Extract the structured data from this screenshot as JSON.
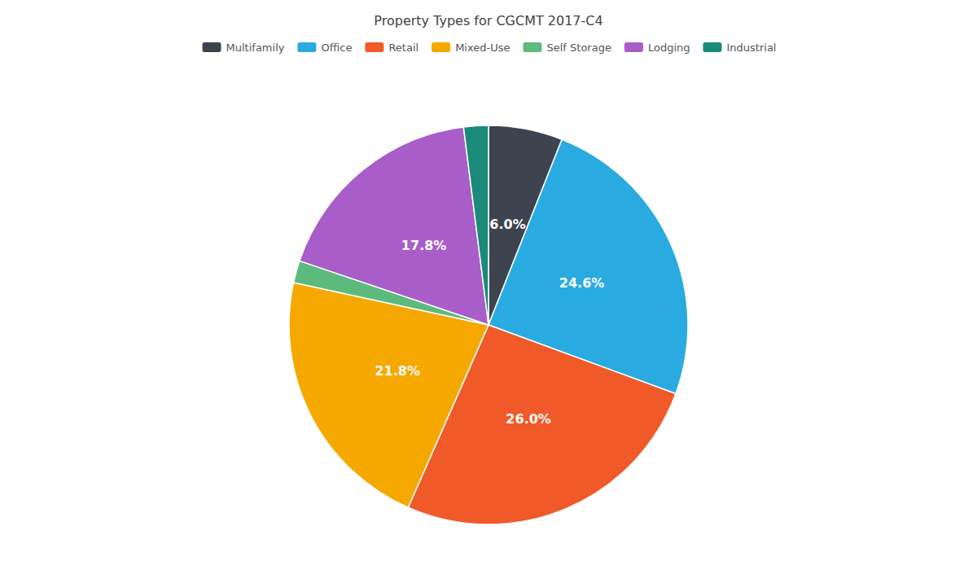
{
  "chart_data": {
    "type": "pie",
    "title": "Property Types for CGCMT 2017-C4",
    "categories": [
      "Multifamily",
      "Office",
      "Retail",
      "Mixed-Use",
      "Self Storage",
      "Lodging",
      "Industrial"
    ],
    "values": [
      6.0,
      24.6,
      26.0,
      21.8,
      1.8,
      17.8,
      2.0
    ],
    "colors": [
      "#3d4450",
      "#29abe2",
      "#f05a28",
      "#f5a800",
      "#5dba7d",
      "#a85dc8",
      "#1a8a7a"
    ],
    "data_labels": true,
    "value_labels": [
      "6.0%",
      "24.6%",
      "26.0%",
      "21.8%",
      null,
      "17.8%",
      null
    ],
    "legend": "top"
  }
}
